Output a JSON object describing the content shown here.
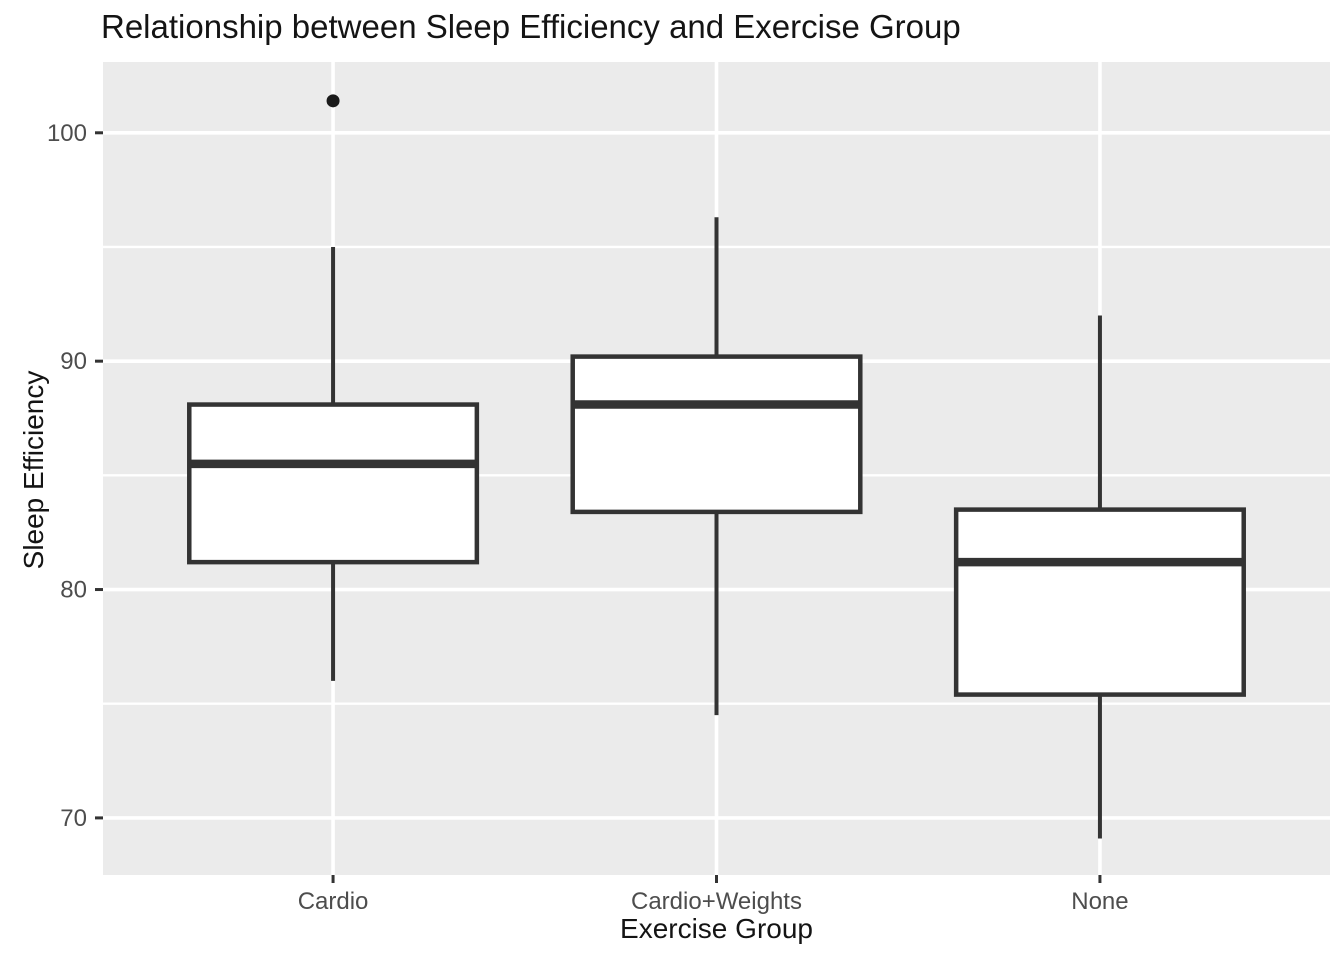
{
  "chart_data": {
    "type": "boxplot",
    "title": "Relationship between Sleep Efficiency and Exercise Group",
    "xlabel": "Exercise Group",
    "ylabel": "Sleep Efficiency",
    "categories": [
      "Cardio",
      "Cardio+Weights",
      "None"
    ],
    "series": [
      {
        "name": "Cardio",
        "whisker_low": 76.0,
        "q1": 81.2,
        "median": 85.5,
        "q3": 88.1,
        "whisker_high": 95.0,
        "outliers": [
          101.4
        ]
      },
      {
        "name": "Cardio+Weights",
        "whisker_low": 74.5,
        "q1": 83.4,
        "median": 88.1,
        "q3": 90.2,
        "whisker_high": 96.3,
        "outliers": []
      },
      {
        "name": "None",
        "whisker_low": 69.1,
        "q1": 75.4,
        "median": 81.2,
        "q3": 83.5,
        "whisker_high": 92.0,
        "outliers": []
      }
    ],
    "y_ticks": [
      70,
      80,
      90,
      100
    ],
    "y_minor_gridlines": [
      75,
      85,
      95
    ],
    "ylim": [
      67.5,
      103.1
    ],
    "box_width_fraction": 0.75,
    "grid": "major-and-minor, white on grey panel",
    "legend_position": "none",
    "colors": {
      "panel_background": "#EBEBEB",
      "gridline": "#FFFFFF",
      "box_fill": "#FFFFFF",
      "box_border": "#333333",
      "median": "#333333",
      "outlier": "#1A1A1A",
      "tick_label": "#4D4D4D",
      "tick_mark": "#333333",
      "title_text": "#141414"
    }
  }
}
